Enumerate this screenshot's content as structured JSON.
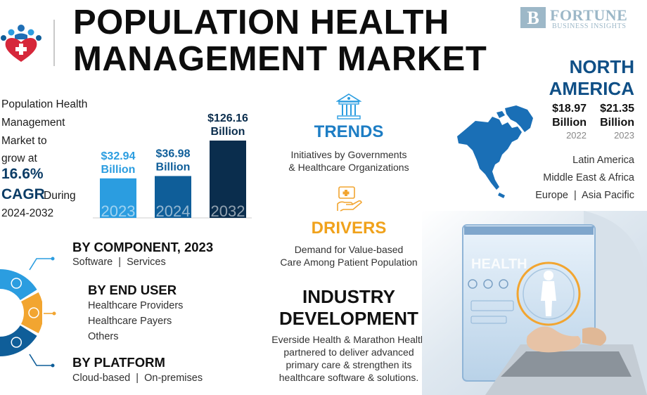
{
  "header": {
    "title_line1": "POPULATION HEALTH",
    "title_line2": "MANAGEMENT MARKET",
    "brand_name": "FORTUNE",
    "brand_sub": "BUSINESS INSIGHTS",
    "brand_mark_letter": "B"
  },
  "intro": {
    "line1": "Population Health",
    "line2": "Management",
    "line3": "Market to",
    "line4": "grow at",
    "cagr_value": "16.6%",
    "cagr_label": "CAGR",
    "during": "During",
    "period": "2024-2032"
  },
  "chart_data": {
    "type": "bar",
    "categories": [
      "2023",
      "2024",
      "2032"
    ],
    "values": [
      32.94,
      36.98,
      126.16
    ],
    "value_labels": [
      {
        "amount": "$32.94",
        "unit": "Billion"
      },
      {
        "amount": "$36.98",
        "unit": "Billion"
      },
      {
        "amount": "$126.16",
        "unit": "Billion"
      }
    ],
    "title": "",
    "xlabel": "",
    "ylabel": "",
    "colors": [
      "#2b9de0",
      "#0f5e99",
      "#0a2d4d"
    ],
    "label_colors": [
      "#2b9de0",
      "#0f5e99",
      "#0a2d4d"
    ],
    "grid": false
  },
  "segments": {
    "component": {
      "title": "BY COMPONENT, 2023",
      "items": "Software  |  Services"
    },
    "end_user": {
      "title": "BY END USER",
      "items": [
        "Healthcare Providers",
        "Healthcare Payers",
        "Others"
      ]
    },
    "platform": {
      "title": "BY PLATFORM",
      "items": "Cloud-based  |  On-premises"
    },
    "wheel_colors": [
      "#2b9de0",
      "#f2a530",
      "#0f5e99"
    ]
  },
  "trends": {
    "title": "TRENDS",
    "title_color": "#1d7dc4",
    "text_line1": "Initiatives by Governments",
    "text_line2": "& Healthcare Organizations"
  },
  "drivers": {
    "title": "DRIVERS",
    "title_color": "#f0a21c",
    "text_line1": "Demand for Value-based",
    "text_line2": "Care Among Patient Population"
  },
  "industry": {
    "title_line1": "INDUSTRY",
    "title_line2": "DEVELOPMENT",
    "text_line1": "Everside Health & Marathon Health",
    "text_line2": "partnered to deliver advanced",
    "text_line3": "primary care & strengthen its",
    "text_line4": "healthcare software & solutions."
  },
  "region": {
    "lead_line1": "NORTH",
    "lead_line2": "AMERICA",
    "values": [
      {
        "amount": "$18.97",
        "unit": "Billion",
        "year": "2022"
      },
      {
        "amount": "$21.35",
        "unit": "Billion",
        "year": "2023"
      }
    ],
    "others": [
      "Latin America",
      "Middle East & Africa",
      "Europe  |  Asia Pacific"
    ],
    "accent": "#0f4f86"
  },
  "photo": {
    "screen_text": "HEALTH"
  }
}
